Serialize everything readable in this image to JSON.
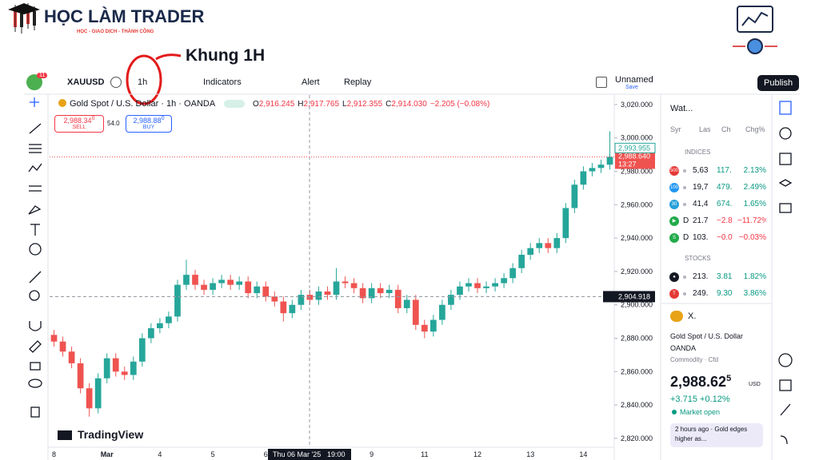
{
  "branding": {
    "title": "HỌC LÀM TRADER",
    "tagline": "HỌC - GIAO DỊCH - THÀNH CÔNG"
  },
  "annotation": "Khung 1H",
  "toolbar": {
    "badge": "11",
    "symbol": "XAUUSD",
    "interval": "1h",
    "indicators": "Indicators",
    "alert": "Alert",
    "replay": "Replay",
    "layout": "Unnamed",
    "save": "Save",
    "publish": "Publish"
  },
  "legend": {
    "title": "Gold Spot / U.S. Dollar · 1h · OANDA",
    "ohlc": [
      [
        "O",
        "2,916.245"
      ],
      [
        "H",
        "2,917.765"
      ],
      [
        "L",
        "2,912.355"
      ],
      [
        "C",
        "2,914.030"
      ]
    ],
    "change": "−2.205 (−0.08%)",
    "sell_price": "2,988.34",
    "sell_sup": "0",
    "sell": "SELL",
    "spread": "54.0",
    "buy_price": "2,988.88",
    "buy_sup": "0",
    "buy": "BUY"
  },
  "chart_data": {
    "type": "candlestick",
    "categories": [
      "8",
      null,
      null,
      null,
      null,
      null,
      "Mar",
      null,
      null,
      null,
      null,
      null,
      "4",
      null,
      null,
      null,
      null,
      null,
      "5",
      null,
      null,
      null,
      null,
      null,
      "6",
      null,
      null,
      null,
      null,
      null,
      null,
      null,
      null,
      null,
      null,
      null,
      "9",
      null,
      null,
      null,
      null,
      null,
      "11",
      null,
      null,
      null,
      null,
      null,
      "12",
      null,
      null,
      null,
      null,
      null,
      "13",
      null,
      null,
      null,
      null,
      null,
      "14",
      null,
      null,
      null
    ],
    "open": [
      2882,
      2878,
      2872,
      2865,
      2850,
      2838,
      2856,
      2868,
      2860,
      2858,
      2866,
      2880,
      2886,
      2889,
      2893,
      2912,
      2918,
      2912,
      2909,
      2913,
      2915,
      2912,
      2914,
      2907,
      2911,
      2905,
      2902,
      2895,
      2900,
      2906,
      2903,
      2908,
      2906,
      2914,
      2913,
      2910,
      2904,
      2910,
      2907,
      2909,
      2898,
      2903,
      2888,
      2884,
      2891,
      2900,
      2906,
      2911,
      2913,
      2910,
      2911,
      2913,
      2916,
      2922,
      2930,
      2934,
      2937,
      2934,
      2940,
      2958,
      2972,
      2980,
      2982,
      2984
    ],
    "high": [
      2885,
      2881,
      2875,
      2868,
      2853,
      2859,
      2871,
      2871,
      2863,
      2869,
      2883,
      2889,
      2892,
      2896,
      2915,
      2927,
      2921,
      2915,
      2916,
      2918,
      2918,
      2917,
      2917,
      2914,
      2914,
      2908,
      2905,
      2903,
      2909,
      2909,
      2911,
      2911,
      2922,
      2917,
      2916,
      2913,
      2913,
      2913,
      2912,
      2912,
      2906,
      2906,
      2891,
      2894,
      2903,
      2909,
      2914,
      2916,
      2916,
      2914,
      2916,
      2919,
      2925,
      2933,
      2937,
      2940,
      2940,
      2943,
      2961,
      2975,
      2983,
      2985,
      2987,
      3004
    ],
    "low": [
      2875,
      2869,
      2862,
      2847,
      2833,
      2835,
      2853,
      2857,
      2855,
      2855,
      2863,
      2877,
      2883,
      2886,
      2890,
      2909,
      2909,
      2906,
      2906,
      2910,
      2909,
      2909,
      2904,
      2904,
      2902,
      2899,
      2890,
      2892,
      2897,
      2900,
      2900,
      2903,
      2903,
      2910,
      2907,
      2901,
      2901,
      2904,
      2904,
      2895,
      2895,
      2885,
      2880,
      2881,
      2888,
      2897,
      2903,
      2908,
      2907,
      2907,
      2908,
      2910,
      2913,
      2919,
      2927,
      2931,
      2931,
      2931,
      2937,
      2955,
      2969,
      2977,
      2979,
      2981
    ],
    "close": [
      2878,
      2872,
      2865,
      2850,
      2838,
      2856,
      2868,
      2860,
      2858,
      2866,
      2880,
      2886,
      2889,
      2893,
      2912,
      2918,
      2912,
      2909,
      2913,
      2915,
      2912,
      2914,
      2907,
      2911,
      2905,
      2902,
      2895,
      2900,
      2906,
      2903,
      2908,
      2906,
      2914,
      2913,
      2910,
      2904,
      2910,
      2907,
      2909,
      2898,
      2903,
      2888,
      2884,
      2891,
      2900,
      2906,
      2911,
      2913,
      2910,
      2911,
      2913,
      2916,
      2922,
      2930,
      2934,
      2937,
      2934,
      2940,
      2958,
      2972,
      2980,
      2982,
      2984,
      2988.64
    ],
    "up_color": "#26a69a",
    "down_color": "#ef5350",
    "ylim": [
      2814.7,
      3025.7
    ],
    "yticks": [
      {
        "value": 2820,
        "label": "2,820.000"
      },
      {
        "value": 2840,
        "label": "2,840.000"
      },
      {
        "value": 2860,
        "label": "2,860.000"
      },
      {
        "value": 2880,
        "label": "2,880.000"
      },
      {
        "value": 2900,
        "label": "2,900.000"
      },
      {
        "value": 2920,
        "label": "2,920.000"
      },
      {
        "value": 2940,
        "label": "2,940.000"
      },
      {
        "value": 2960,
        "label": "2,960.000"
      },
      {
        "value": 2980,
        "label": "2,980.000"
      },
      {
        "value": 3000,
        "label": "3,000.000"
      },
      {
        "value": 3020,
        "label": "3,020.000"
      }
    ],
    "high_marker": {
      "value": 2993.955,
      "label": "2,993.955"
    },
    "last_price": {
      "value": 2988.64,
      "label": "2,988.640",
      "countdown": "13:27"
    },
    "crosshair": {
      "value": 2904.918,
      "label": "2,904.918",
      "date": "Thu 06 Mar '25",
      "time": "19:00"
    },
    "watermark": "TradingView"
  },
  "watchlist": {
    "title": "Wat...",
    "columns": [
      "Syr",
      "Las",
      "Ch",
      "Chg%"
    ],
    "sections": [
      {
        "name": "INDICES",
        "rows": [
          {
            "icon": "500",
            "icon_color": "#e53935",
            "last": "5,63",
            "chg": "117.",
            "chgp": "2.13%",
            "color": "#089981"
          },
          {
            "icon": "100",
            "icon_color": "#2196f3",
            "last": "19,7",
            "chg": "479.",
            "chgp": "2.49%",
            "color": "#089981"
          },
          {
            "icon": "30",
            "icon_color": "#26a0da",
            "last": "41,4",
            "chg": "674.",
            "chgp": "1.65%",
            "color": "#089981"
          },
          {
            "icon": "▶",
            "icon_color": "#22ab4a",
            "sym": "D",
            "last": "21.7",
            "chg": "−2.8",
            "chgp": "−11.72%",
            "color": "#f23645"
          },
          {
            "icon": "S",
            "icon_color": "#22ab4a",
            "sym": "D",
            "last": "103.",
            "chg": "−0.0",
            "chgp": "−0.03%",
            "color": "#f23645"
          }
        ]
      },
      {
        "name": "STOCKS",
        "rows": [
          {
            "icon": "●",
            "icon_color": "#131722",
            "last": "213.",
            "chg": "3.81",
            "chgp": "1.82%",
            "color": "#089981"
          },
          {
            "icon": "T",
            "icon_color": "#e53935",
            "last": "249.",
            "chg": "9.30",
            "chgp": "3.86%",
            "color": "#089981"
          }
        ]
      }
    ]
  },
  "symbol_panel": {
    "ticker": "X.",
    "name": "Gold Spot / U.S. Dollar",
    "exchange": "OANDA",
    "kind": "Commodity · Cfd",
    "price": "2,988.62",
    "price_sup": "5",
    "currency": "USD",
    "change": "+3.715",
    "change_pct": "+0.12%",
    "status": "Market open",
    "news": "2 hours ago · Gold edges higher as..."
  }
}
